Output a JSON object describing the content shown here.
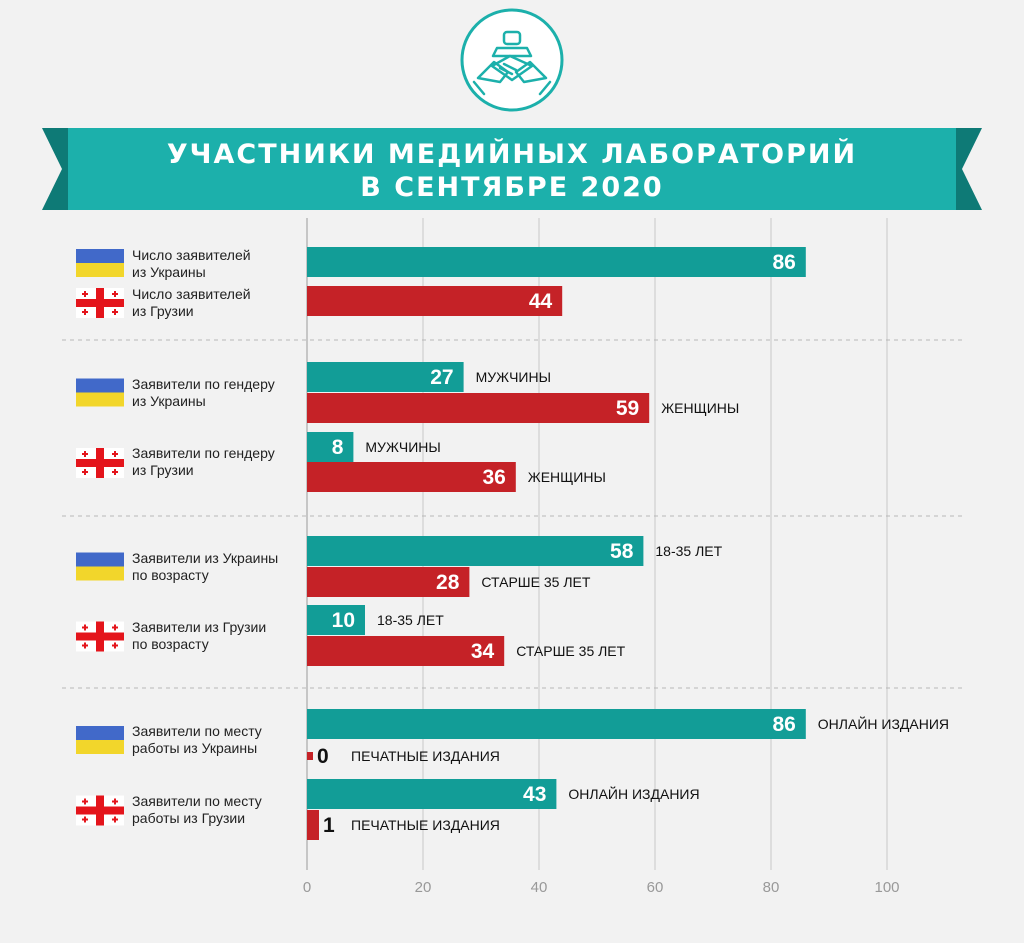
{
  "title": {
    "line1": "УЧАСТНИКИ МЕДИЙНЫХ ЛАБОРАТОРИЙ",
    "line2": "В СЕНТЯБРЕ 2020"
  },
  "colors": {
    "teal": "#129d97",
    "red": "#c52227",
    "banner": "#1cb0ab",
    "banner_dark": "#0e7a76",
    "ukraine_blue": "#4169c9",
    "ukraine_yellow": "#f2d62b",
    "georgia_red": "#e4141b"
  },
  "icon": "hands-together-icon",
  "groups": [
    {
      "rows": [
        {
          "label": [
            "Число заявителей",
            "из Украины"
          ],
          "flag": "ukraine",
          "bars": [
            {
              "value": 86,
              "color": "teal",
              "tag": ""
            }
          ]
        },
        {
          "label": [
            "Число заявителей",
            "из Грузии"
          ],
          "flag": "georgia",
          "bars": [
            {
              "value": 44,
              "color": "red",
              "tag": ""
            }
          ]
        }
      ]
    },
    {
      "rows": [
        {
          "label": [
            "Заявители по гендеру",
            "из Украины"
          ],
          "flag": "ukraine",
          "bars": [
            {
              "value": 27,
              "color": "teal",
              "tag": "МУЖЧИНЫ"
            },
            {
              "value": 59,
              "color": "red",
              "tag": "ЖЕНЩИНЫ"
            }
          ]
        },
        {
          "label": [
            "Заявители по гендеру",
            "из Грузии"
          ],
          "flag": "georgia",
          "bars": [
            {
              "value": 8,
              "color": "teal",
              "tag": "МУЖЧИНЫ"
            },
            {
              "value": 36,
              "color": "red",
              "tag": "ЖЕНЩИНЫ"
            }
          ]
        }
      ]
    },
    {
      "rows": [
        {
          "label": [
            "Заявители из Украины",
            "по возрасту"
          ],
          "flag": "ukraine",
          "bars": [
            {
              "value": 58,
              "color": "teal",
              "tag": "18-35 ЛЕТ"
            },
            {
              "value": 28,
              "color": "red",
              "tag": "СТАРШЕ 35 ЛЕТ"
            }
          ]
        },
        {
          "label": [
            "Заявители из Грузии",
            "по возрасту"
          ],
          "flag": "georgia",
          "bars": [
            {
              "value": 10,
              "color": "teal",
              "tag": "18-35 ЛЕТ"
            },
            {
              "value": 34,
              "color": "red",
              "tag": "СТАРШЕ 35 ЛЕТ"
            }
          ]
        }
      ]
    },
    {
      "rows": [
        {
          "label": [
            "Заявители по месту",
            "работы из Украины"
          ],
          "flag": "ukraine",
          "bars": [
            {
              "value": 86,
              "color": "teal",
              "tag": "ОНЛАЙН ИЗДАНИЯ"
            },
            {
              "value": 0,
              "color": "red",
              "tag": "ПЕЧАТНЫЕ ИЗДАНИЯ"
            }
          ]
        },
        {
          "label": [
            "Заявители по месту",
            "работы из Грузии"
          ],
          "flag": "georgia",
          "bars": [
            {
              "value": 43,
              "color": "teal",
              "tag": "ОНЛАЙН ИЗДАНИЯ"
            },
            {
              "value": 1,
              "color": "red",
              "tag": "ПЕЧАТНЫЕ ИЗДАНИЯ"
            }
          ]
        }
      ]
    }
  ],
  "chart_data": {
    "type": "bar",
    "orientation": "horizontal",
    "title": "УЧАСТНИКИ МЕДИЙНЫХ ЛАБОРАТОРИЙ В СЕНТЯБРЕ 2020",
    "xlim": [
      0,
      100
    ],
    "xticks": [
      0,
      20,
      40,
      60,
      80,
      100
    ],
    "grid": true,
    "categories": [
      "Число заявителей из Украины",
      "Число заявителей из Грузии",
      "Заявители по гендеру из Украины — МУЖЧИНЫ",
      "Заявители по гендеру из Украины — ЖЕНЩИНЫ",
      "Заявители по гендеру из Грузии — МУЖЧИНЫ",
      "Заявители по гендеру из Грузии — ЖЕНЩИНЫ",
      "Заявители из Украины по возрасту — 18-35 ЛЕТ",
      "Заявители из Украины по возрасту — СТАРШЕ 35 ЛЕТ",
      "Заявители из Грузии по возрасту — 18-35 ЛЕТ",
      "Заявители из Грузии по возрасту — СТАРШЕ 35 ЛЕТ",
      "Заявители по месту работы из Украины — ОНЛАЙН ИЗДАНИЯ",
      "Заявители по месту работы из Украины — ПЕЧАТНЫЕ ИЗДАНИЯ",
      "Заявители по месту работы из Грузии — ОНЛАЙН ИЗДАНИЯ",
      "Заявители по месту работы из Грузии — ПЕЧАТНЫЕ ИЗДАНИЯ"
    ],
    "values": [
      86,
      44,
      27,
      59,
      8,
      36,
      58,
      28,
      10,
      34,
      86,
      0,
      43,
      1
    ]
  }
}
